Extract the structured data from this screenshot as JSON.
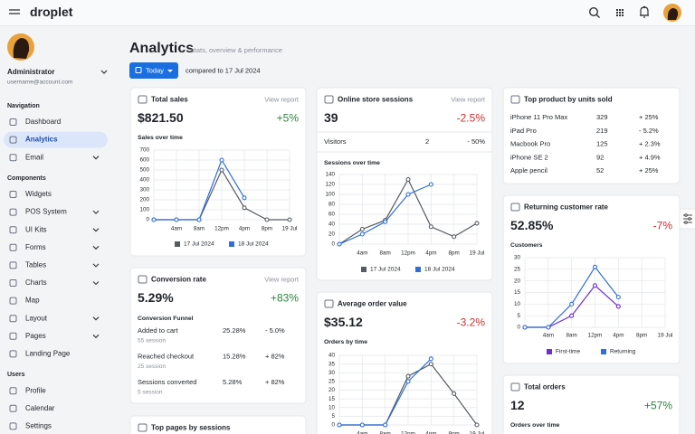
{
  "topbar": {
    "brand": "droplet"
  },
  "sidebar": {
    "user": {
      "name": "Administrator",
      "email": "username@account.com"
    },
    "sections": [
      {
        "title": "Navigation",
        "items": [
          {
            "label": "Dashboard",
            "expandable": false
          },
          {
            "label": "Analytics",
            "expandable": false,
            "active": true
          },
          {
            "label": "Email",
            "expandable": true
          }
        ]
      },
      {
        "title": "Components",
        "items": [
          {
            "label": "Widgets",
            "expandable": false
          },
          {
            "label": "POS System",
            "expandable": true
          },
          {
            "label": "UI Kits",
            "expandable": true
          },
          {
            "label": "Forms",
            "expandable": true
          },
          {
            "label": "Tables",
            "expandable": true
          },
          {
            "label": "Charts",
            "expandable": true
          },
          {
            "label": "Map",
            "expandable": false
          },
          {
            "label": "Layout",
            "expandable": true
          },
          {
            "label": "Pages",
            "expandable": true
          },
          {
            "label": "Landing Page",
            "expandable": false
          }
        ]
      },
      {
        "title": "Users",
        "items": [
          {
            "label": "Profile",
            "expandable": false
          },
          {
            "label": "Calendar",
            "expandable": false
          },
          {
            "label": "Settings",
            "expandable": false
          }
        ]
      }
    ]
  },
  "header": {
    "title": "Analytics",
    "subtitle": "stats, overview & performance",
    "button": "Today",
    "compare": "compared to 17 Jul 2024"
  },
  "cards": {
    "total_sales": {
      "title": "Total sales",
      "link": "View report",
      "value": "$821.50",
      "change": "+5%",
      "chart": {
        "type": "line",
        "title": "Sales over time",
        "categories": [
          null,
          "4am",
          "8am",
          "12pm",
          "4pm",
          "8pm",
          "19 Jul"
        ],
        "ylim": [
          0,
          700
        ],
        "yticks": [
          0,
          100,
          200,
          300,
          400,
          500,
          600,
          700
        ],
        "grid": true,
        "series": [
          {
            "name": "17 Jul 2024",
            "color": "#555b61",
            "values": [
              0,
              0,
              0,
              500,
              120,
              0,
              0
            ]
          },
          {
            "name": "18 Jul 2024",
            "color": "#2f6fdb",
            "values": [
              0,
              0,
              0,
              600,
              220,
              null,
              null
            ]
          }
        ]
      }
    },
    "conversion_rate": {
      "title": "Conversion rate",
      "link": "View report",
      "value": "5.29%",
      "change": "+83%",
      "funnel": {
        "title": "Conversion Funnel",
        "rows": [
          {
            "label": "Added to cart",
            "sub": "55 session",
            "rate": "25.28%",
            "change": "- 5.0%"
          },
          {
            "label": "Reached checkout",
            "sub": "25 session",
            "rate": "15.28%",
            "change": "+ 82%"
          },
          {
            "label": "Sessions converted",
            "sub": "5 session",
            "rate": "5.28%",
            "change": "+ 82%"
          }
        ]
      }
    },
    "top_pages": {
      "title": "Top pages by sessions"
    },
    "online_store_sessions": {
      "title": "Online store sessions",
      "link": "View report",
      "value": "39",
      "change": "-2.5%",
      "rows": [
        [
          "Visitors",
          "2",
          "- 50%"
        ]
      ],
      "chart": {
        "type": "line",
        "title": "Sessions over time",
        "categories": [
          null,
          "4am",
          "8am",
          "12pm",
          "4pm",
          "8pm",
          "19 Jul"
        ],
        "ylim": [
          0,
          140
        ],
        "yticks": [
          0,
          20,
          40,
          60,
          80,
          100,
          120,
          140
        ],
        "grid": true,
        "series": [
          {
            "name": "17 Jul 2024",
            "color": "#555b61",
            "values": [
              0,
              30,
              48,
              130,
              35,
              15,
              42
            ]
          },
          {
            "name": "18 Jul 2024",
            "color": "#2f6fdb",
            "values": [
              0,
              20,
              45,
              100,
              120,
              null,
              null
            ]
          }
        ]
      }
    },
    "average_order_value": {
      "title": "Average order value",
      "value": "$35.12",
      "change": "-3.2%",
      "chart": {
        "type": "line",
        "title": "Orders by time",
        "categories": [
          null,
          "4am",
          "8am",
          "12pm",
          "4pm",
          "8pm",
          "19 Jul"
        ],
        "ylim": [
          0,
          40
        ],
        "yticks": [
          0,
          5,
          10,
          15,
          20,
          25,
          30,
          35,
          40
        ],
        "grid": true,
        "series": [
          {
            "name": "17 Jul 2024",
            "color": "#555b61",
            "values": [
              0,
              0,
              0,
              28,
              35,
              18,
              0
            ]
          },
          {
            "name": "18 Jul 2024",
            "color": "#2f6fdb",
            "values": [
              0,
              0,
              0,
              25,
              38,
              null,
              null
            ]
          }
        ]
      }
    },
    "top_product": {
      "title": "Top product by units sold",
      "rows": [
        [
          "iPhone 11 Pro Max",
          "329",
          "+ 25%"
        ],
        [
          "iPad Pro",
          "219",
          "- 5.2%"
        ],
        [
          "Macbook Pro",
          "125",
          "+ 2.3%"
        ],
        [
          "iPhone SE 2",
          "92",
          "+ 4.9%"
        ],
        [
          "Apple pencil",
          "52",
          "+ 25%"
        ]
      ]
    },
    "returning_customer_rate": {
      "title": "Returning customer rate",
      "value": "52.85%",
      "change": "-7%",
      "chart": {
        "type": "line",
        "title": "Customers",
        "categories": [
          null,
          "4am",
          "8am",
          "12pm",
          "4pm",
          "8pm",
          "19 Jul"
        ],
        "ylim": [
          0,
          30
        ],
        "yticks": [
          0,
          5,
          10,
          15,
          20,
          25,
          30
        ],
        "grid": true,
        "series": [
          {
            "name": "First-time",
            "color": "#6d2fd6",
            "values": [
              0,
              0,
              5,
              18,
              9,
              null,
              null
            ]
          },
          {
            "name": "Returning",
            "color": "#2f6fdb",
            "values": [
              0,
              0,
              10,
              26,
              13,
              null,
              null
            ]
          }
        ]
      }
    },
    "total_orders": {
      "title": "Total orders",
      "value": "12",
      "change": "+57%",
      "chart": {
        "title": "Orders over time"
      }
    }
  }
}
